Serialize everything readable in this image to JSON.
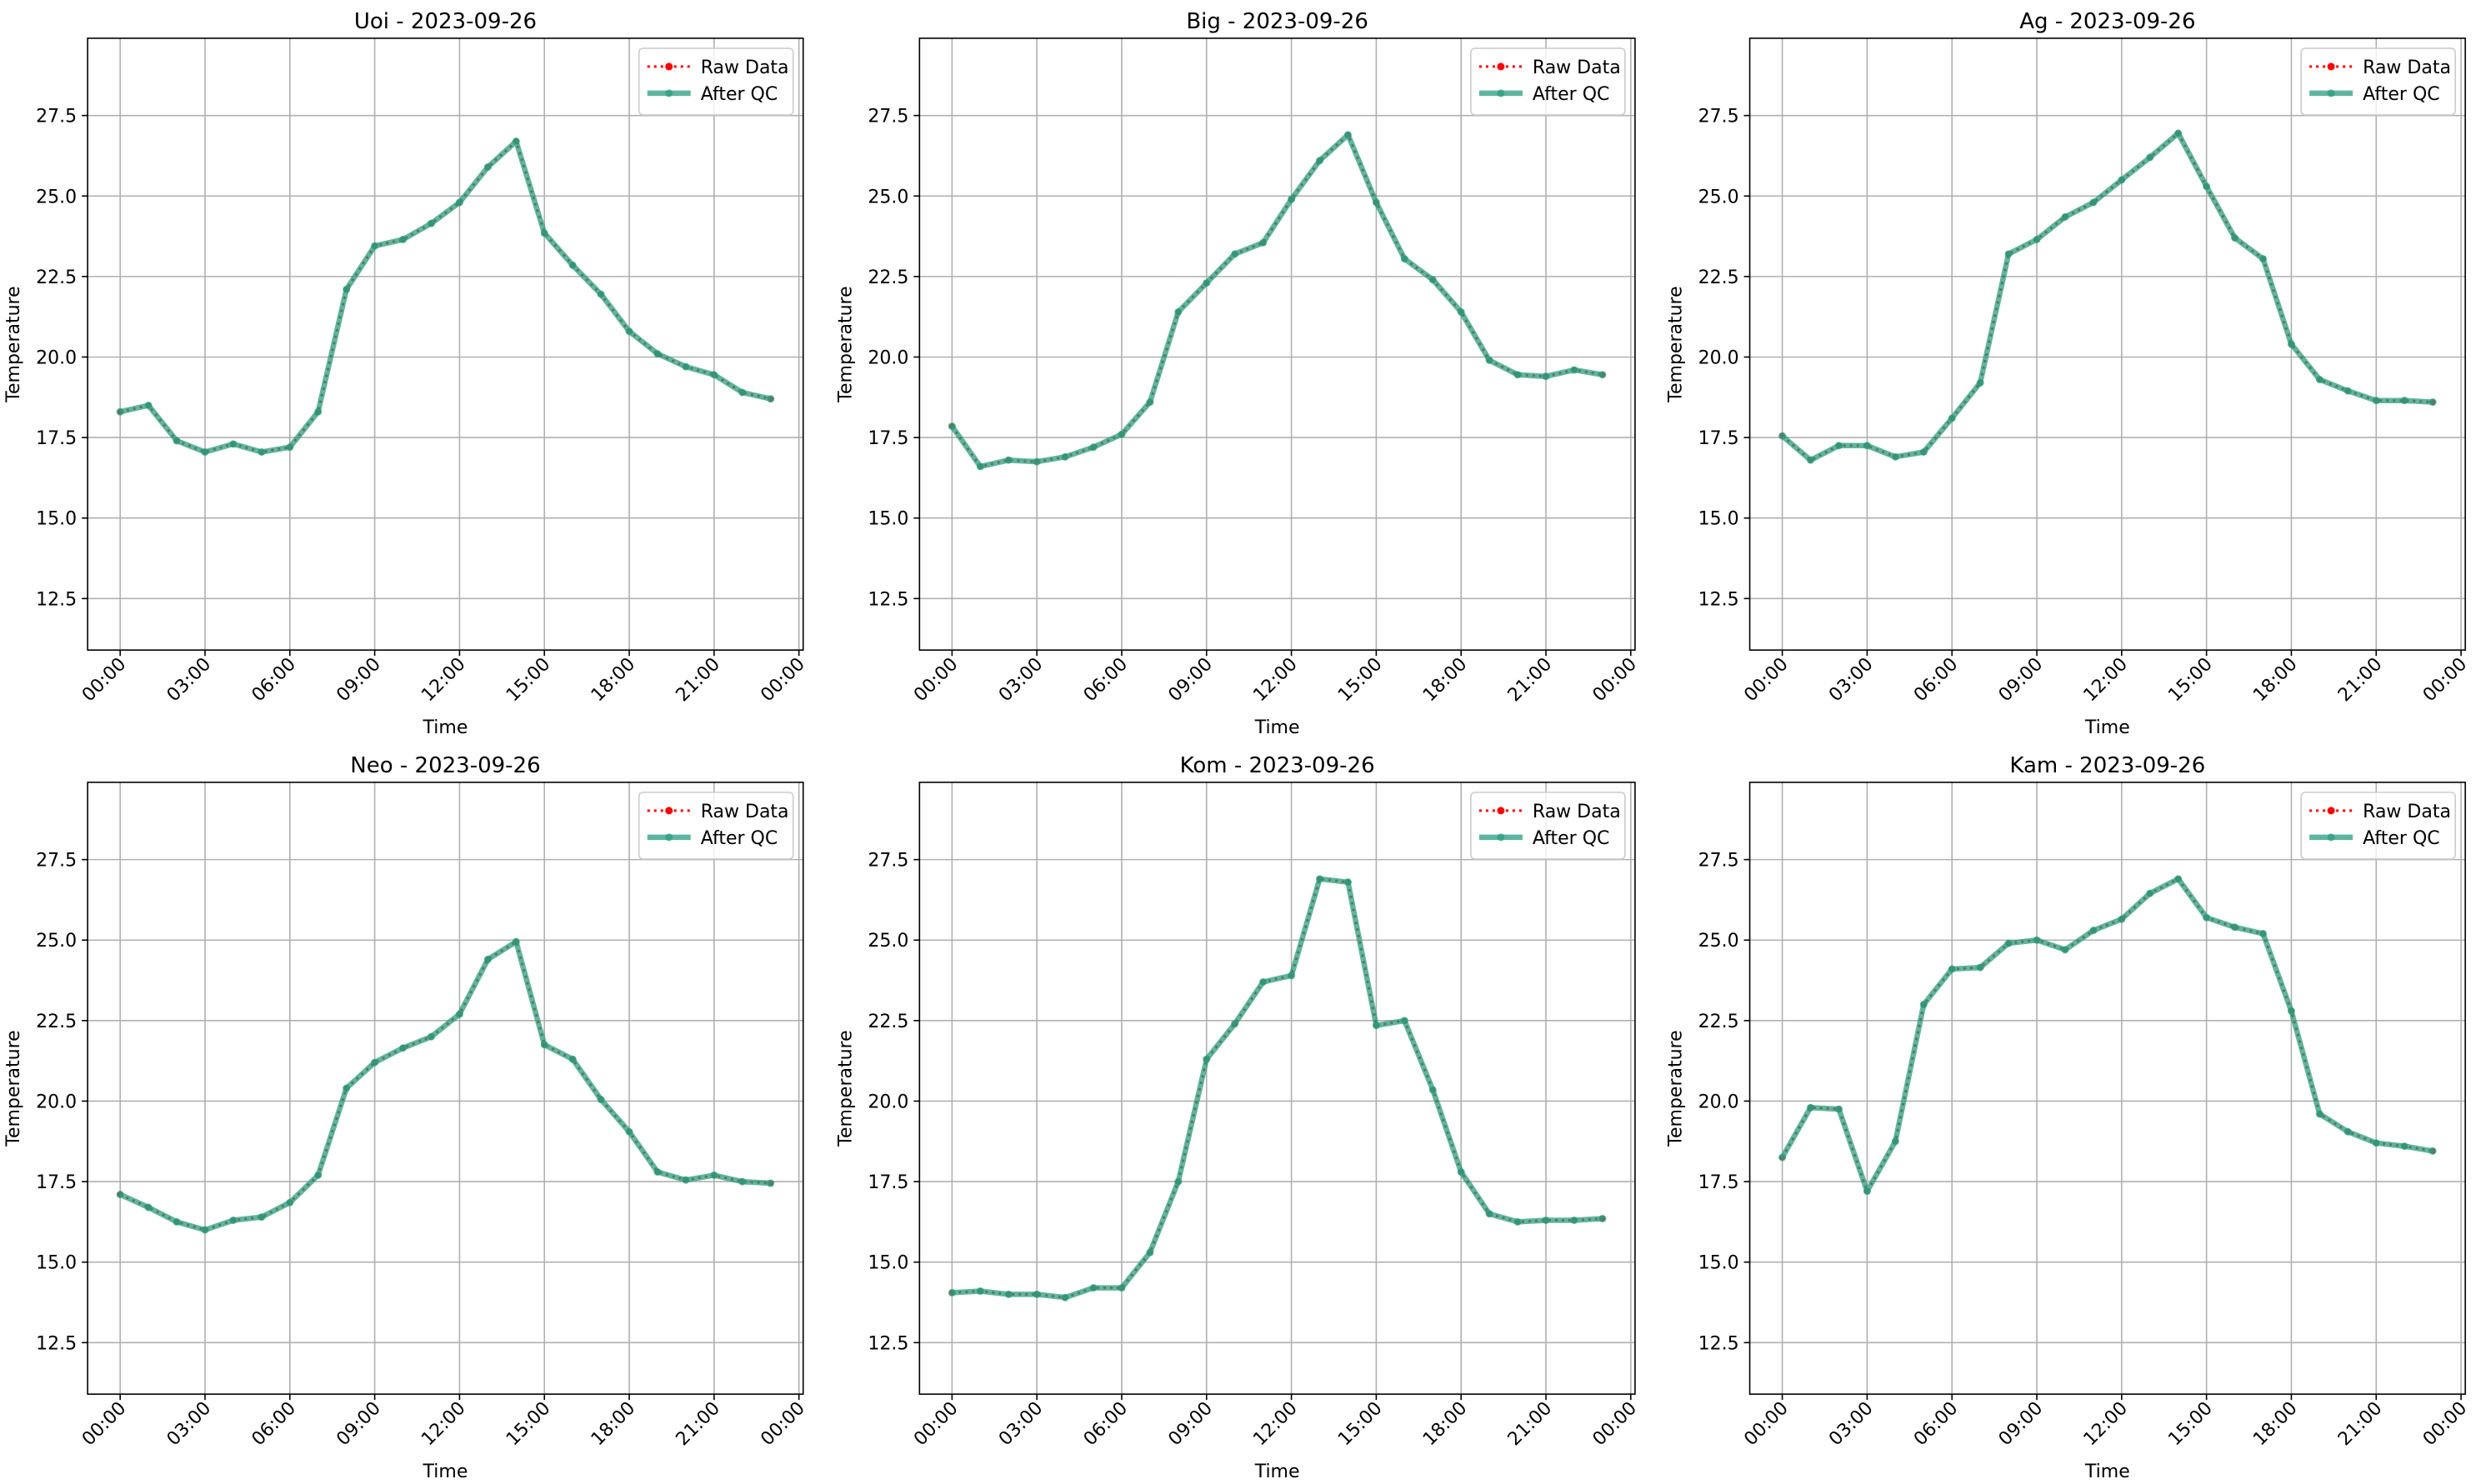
{
  "chart_data": [
    {
      "type": "line",
      "title": "Uoi - 2023-09-26",
      "xlabel": "Time",
      "ylabel": "Temperature",
      "x": [
        0,
        1,
        2,
        3,
        4,
        5,
        6,
        7,
        8,
        9,
        10,
        11,
        12,
        13,
        14,
        15,
        16,
        17,
        18,
        19,
        20,
        21,
        22,
        23
      ],
      "xlim": [
        -1.15,
        24.15
      ],
      "xticks": [
        {
          "value": 0,
          "label": "00:00"
        },
        {
          "value": 3,
          "label": "03:00"
        },
        {
          "value": 6,
          "label": "06:00"
        },
        {
          "value": 9,
          "label": "09:00"
        },
        {
          "value": 12,
          "label": "12:00"
        },
        {
          "value": 15,
          "label": "15:00"
        },
        {
          "value": 18,
          "label": "18:00"
        },
        {
          "value": 21,
          "label": "21:00"
        },
        {
          "value": 24,
          "label": "00:00"
        }
      ],
      "ylim": [
        10.9,
        29.9
      ],
      "yticks": [
        12.5,
        {
          "value": 15,
          "label": "15.0"
        },
        17.5,
        {
          "value": 20,
          "label": "20.0"
        },
        22.5,
        {
          "value": 25,
          "label": "25.0"
        },
        27.5
      ],
      "grid": true,
      "legend": "upper right",
      "series": [
        {
          "name": "Raw Data",
          "color": "#ff0000",
          "values": [
            18.3,
            18.5,
            17.4,
            17.05,
            17.3,
            17.05,
            17.2,
            18.3,
            22.1,
            23.45,
            23.65,
            24.15,
            24.8,
            25.9,
            26.7,
            23.85,
            22.85,
            21.95,
            20.8,
            20.1,
            19.7,
            19.45,
            18.9,
            18.7
          ]
        },
        {
          "name": "After QC",
          "color": "#2a9d7f",
          "values": [
            18.3,
            18.5,
            17.4,
            17.05,
            17.3,
            17.05,
            17.2,
            18.3,
            22.1,
            23.45,
            23.65,
            24.15,
            24.8,
            25.9,
            26.7,
            23.85,
            22.85,
            21.95,
            20.8,
            20.1,
            19.7,
            19.45,
            18.9,
            18.7
          ]
        }
      ]
    },
    {
      "type": "line",
      "title": "Big - 2023-09-26",
      "xlabel": "Time",
      "ylabel": "Temperature",
      "x": [
        0,
        1,
        2,
        3,
        4,
        5,
        6,
        7,
        8,
        9,
        10,
        11,
        12,
        13,
        14,
        15,
        16,
        17,
        18,
        19,
        20,
        21,
        22,
        23
      ],
      "xlim": [
        -1.15,
        24.15
      ],
      "xticks": [
        {
          "value": 0,
          "label": "00:00"
        },
        {
          "value": 3,
          "label": "03:00"
        },
        {
          "value": 6,
          "label": "06:00"
        },
        {
          "value": 9,
          "label": "09:00"
        },
        {
          "value": 12,
          "label": "12:00"
        },
        {
          "value": 15,
          "label": "15:00"
        },
        {
          "value": 18,
          "label": "18:00"
        },
        {
          "value": 21,
          "label": "21:00"
        },
        {
          "value": 24,
          "label": "00:00"
        }
      ],
      "ylim": [
        10.9,
        29.9
      ],
      "yticks": [
        12.5,
        {
          "value": 15,
          "label": "15.0"
        },
        17.5,
        {
          "value": 20,
          "label": "20.0"
        },
        22.5,
        {
          "value": 25,
          "label": "25.0"
        },
        27.5
      ],
      "grid": true,
      "legend": "upper right",
      "series": [
        {
          "name": "Raw Data",
          "color": "#ff0000",
          "values": [
            17.85,
            16.6,
            16.8,
            16.75,
            16.9,
            17.2,
            17.6,
            18.6,
            21.4,
            22.3,
            23.2,
            23.55,
            24.9,
            26.1,
            26.9,
            24.8,
            23.05,
            22.4,
            21.4,
            19.9,
            19.45,
            19.4,
            19.6,
            19.45
          ]
        },
        {
          "name": "After QC",
          "color": "#2a9d7f",
          "values": [
            17.85,
            16.6,
            16.8,
            16.75,
            16.9,
            17.2,
            17.6,
            18.6,
            21.4,
            22.3,
            23.2,
            23.55,
            24.9,
            26.1,
            26.9,
            24.8,
            23.05,
            22.4,
            21.4,
            19.9,
            19.45,
            19.4,
            19.6,
            19.45
          ]
        }
      ]
    },
    {
      "type": "line",
      "title": "Ag - 2023-09-26",
      "xlabel": "Time",
      "ylabel": "Temperature",
      "x": [
        0,
        1,
        2,
        3,
        4,
        5,
        6,
        7,
        8,
        9,
        10,
        11,
        12,
        13,
        14,
        15,
        16,
        17,
        18,
        19,
        20,
        21,
        22,
        23
      ],
      "xlim": [
        -1.15,
        24.15
      ],
      "xticks": [
        {
          "value": 0,
          "label": "00:00"
        },
        {
          "value": 3,
          "label": "03:00"
        },
        {
          "value": 6,
          "label": "06:00"
        },
        {
          "value": 9,
          "label": "09:00"
        },
        {
          "value": 12,
          "label": "12:00"
        },
        {
          "value": 15,
          "label": "15:00"
        },
        {
          "value": 18,
          "label": "18:00"
        },
        {
          "value": 21,
          "label": "21:00"
        },
        {
          "value": 24,
          "label": "00:00"
        }
      ],
      "ylim": [
        10.9,
        29.9
      ],
      "yticks": [
        12.5,
        {
          "value": 15,
          "label": "15.0"
        },
        17.5,
        {
          "value": 20,
          "label": "20.0"
        },
        22.5,
        {
          "value": 25,
          "label": "25.0"
        },
        27.5
      ],
      "grid": true,
      "legend": "upper right",
      "series": [
        {
          "name": "Raw Data",
          "color": "#ff0000",
          "values": [
            17.55,
            16.8,
            17.25,
            17.25,
            16.9,
            17.05,
            18.1,
            19.2,
            23.2,
            23.65,
            24.35,
            24.8,
            25.5,
            26.2,
            26.95,
            25.3,
            23.7,
            23.05,
            20.4,
            19.3,
            18.95,
            18.65,
            18.65,
            18.6
          ]
        },
        {
          "name": "After QC",
          "color": "#2a9d7f",
          "values": [
            17.55,
            16.8,
            17.25,
            17.25,
            16.9,
            17.05,
            18.1,
            19.2,
            23.2,
            23.65,
            24.35,
            24.8,
            25.5,
            26.2,
            26.95,
            25.3,
            23.7,
            23.05,
            20.4,
            19.3,
            18.95,
            18.65,
            18.65,
            18.6
          ]
        }
      ]
    },
    {
      "type": "line",
      "title": "Neo - 2023-09-26",
      "xlabel": "Time",
      "ylabel": "Temperature",
      "x": [
        0,
        1,
        2,
        3,
        4,
        5,
        6,
        7,
        8,
        9,
        10,
        11,
        12,
        13,
        14,
        15,
        16,
        17,
        18,
        19,
        20,
        21,
        22,
        23
      ],
      "xlim": [
        -1.15,
        24.15
      ],
      "xticks": [
        {
          "value": 0,
          "label": "00:00"
        },
        {
          "value": 3,
          "label": "03:00"
        },
        {
          "value": 6,
          "label": "06:00"
        },
        {
          "value": 9,
          "label": "09:00"
        },
        {
          "value": 12,
          "label": "12:00"
        },
        {
          "value": 15,
          "label": "15:00"
        },
        {
          "value": 18,
          "label": "18:00"
        },
        {
          "value": 21,
          "label": "21:00"
        },
        {
          "value": 24,
          "label": "00:00"
        }
      ],
      "ylim": [
        10.9,
        29.9
      ],
      "yticks": [
        12.5,
        {
          "value": 15,
          "label": "15.0"
        },
        17.5,
        {
          "value": 20,
          "label": "20.0"
        },
        22.5,
        {
          "value": 25,
          "label": "25.0"
        },
        27.5
      ],
      "grid": true,
      "legend": "upper right",
      "series": [
        {
          "name": "Raw Data",
          "color": "#ff0000",
          "values": [
            17.1,
            16.7,
            16.25,
            16.0,
            16.3,
            16.4,
            16.85,
            17.7,
            20.4,
            21.2,
            21.65,
            22.0,
            22.7,
            24.4,
            24.95,
            21.75,
            21.3,
            20.05,
            19.05,
            17.8,
            17.55,
            17.7,
            17.5,
            17.45
          ]
        },
        {
          "name": "After QC",
          "color": "#2a9d7f",
          "values": [
            17.1,
            16.7,
            16.25,
            16.0,
            16.3,
            16.4,
            16.85,
            17.7,
            20.4,
            21.2,
            21.65,
            22.0,
            22.7,
            24.4,
            24.95,
            21.75,
            21.3,
            20.05,
            19.05,
            17.8,
            17.55,
            17.7,
            17.5,
            17.45
          ]
        }
      ]
    },
    {
      "type": "line",
      "title": "Kom - 2023-09-26",
      "xlabel": "Time",
      "ylabel": "Temperature",
      "x": [
        0,
        1,
        2,
        3,
        4,
        5,
        6,
        7,
        8,
        9,
        10,
        11,
        12,
        13,
        14,
        15,
        16,
        17,
        18,
        19,
        20,
        21,
        22,
        23
      ],
      "xlim": [
        -1.15,
        24.15
      ],
      "xticks": [
        {
          "value": 0,
          "label": "00:00"
        },
        {
          "value": 3,
          "label": "03:00"
        },
        {
          "value": 6,
          "label": "06:00"
        },
        {
          "value": 9,
          "label": "09:00"
        },
        {
          "value": 12,
          "label": "12:00"
        },
        {
          "value": 15,
          "label": "15:00"
        },
        {
          "value": 18,
          "label": "18:00"
        },
        {
          "value": 21,
          "label": "21:00"
        },
        {
          "value": 24,
          "label": "00:00"
        }
      ],
      "ylim": [
        10.9,
        29.9
      ],
      "yticks": [
        12.5,
        {
          "value": 15,
          "label": "15.0"
        },
        17.5,
        {
          "value": 20,
          "label": "20.0"
        },
        22.5,
        {
          "value": 25,
          "label": "25.0"
        },
        27.5
      ],
      "grid": true,
      "legend": "upper right",
      "series": [
        {
          "name": "Raw Data",
          "color": "#ff0000",
          "values": [
            14.05,
            14.1,
            14.0,
            14.0,
            13.9,
            14.2,
            14.2,
            15.3,
            17.5,
            21.3,
            22.4,
            23.7,
            23.9,
            26.9,
            26.8,
            22.35,
            22.5,
            20.35,
            17.8,
            16.5,
            16.25,
            16.3,
            16.3,
            16.35
          ]
        },
        {
          "name": "After QC",
          "color": "#2a9d7f",
          "values": [
            14.05,
            14.1,
            14.0,
            14.0,
            13.9,
            14.2,
            14.2,
            15.3,
            17.5,
            21.3,
            22.4,
            23.7,
            23.9,
            26.9,
            26.8,
            22.35,
            22.5,
            20.35,
            17.8,
            16.5,
            16.25,
            16.3,
            16.3,
            16.35
          ]
        }
      ]
    },
    {
      "type": "line",
      "title": "Kam - 2023-09-26",
      "xlabel": "Time",
      "ylabel": "Temperature",
      "x": [
        0,
        1,
        2,
        3,
        4,
        5,
        6,
        7,
        8,
        9,
        10,
        11,
        12,
        13,
        14,
        15,
        16,
        17,
        18,
        19,
        20,
        21,
        22,
        23
      ],
      "xlim": [
        -1.15,
        24.15
      ],
      "xticks": [
        {
          "value": 0,
          "label": "00:00"
        },
        {
          "value": 3,
          "label": "03:00"
        },
        {
          "value": 6,
          "label": "06:00"
        },
        {
          "value": 9,
          "label": "09:00"
        },
        {
          "value": 12,
          "label": "12:00"
        },
        {
          "value": 15,
          "label": "15:00"
        },
        {
          "value": 18,
          "label": "18:00"
        },
        {
          "value": 21,
          "label": "21:00"
        },
        {
          "value": 24,
          "label": "00:00"
        }
      ],
      "ylim": [
        10.9,
        29.9
      ],
      "yticks": [
        12.5,
        {
          "value": 15,
          "label": "15.0"
        },
        17.5,
        {
          "value": 20,
          "label": "20.0"
        },
        22.5,
        {
          "value": 25,
          "label": "25.0"
        },
        27.5
      ],
      "grid": true,
      "legend": "upper right",
      "series": [
        {
          "name": "Raw Data",
          "color": "#ff0000",
          "values": [
            18.25,
            19.8,
            19.75,
            17.2,
            18.75,
            23.0,
            24.1,
            24.15,
            24.9,
            25.0,
            24.7,
            25.3,
            25.65,
            26.45,
            26.9,
            25.7,
            25.4,
            25.2,
            22.8,
            19.6,
            19.05,
            18.7,
            18.6,
            18.45
          ]
        },
        {
          "name": "After QC",
          "color": "#2a9d7f",
          "values": [
            18.25,
            19.8,
            19.75,
            17.2,
            18.75,
            23.0,
            24.1,
            24.15,
            24.9,
            25.0,
            24.7,
            25.3,
            25.65,
            26.45,
            26.9,
            25.7,
            25.4,
            25.2,
            22.8,
            19.6,
            19.05,
            18.7,
            18.6,
            18.45
          ]
        }
      ]
    }
  ]
}
